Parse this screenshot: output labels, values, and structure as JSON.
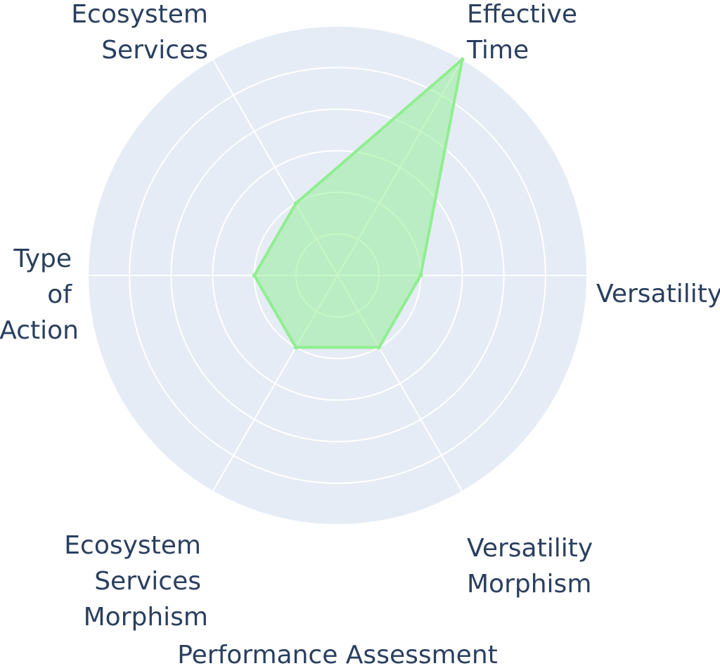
{
  "chart_data": {
    "type": "radar",
    "title": "Performance Assessment",
    "axes": [
      "Versatility",
      "Effective Time",
      "Ecosystem Services",
      "Type of Action",
      "Ecosystem Services Morphism",
      "Versatility Morphism"
    ],
    "axis_label_lines": [
      [
        "Versatility"
      ],
      [
        "Effective",
        "Time"
      ],
      [
        "Ecosystem",
        "Services"
      ],
      [
        "Type",
        "of",
        "Action"
      ],
      [
        "Ecosystem",
        "Services",
        "Morphism"
      ],
      [
        "Versatility",
        "Morphism"
      ]
    ],
    "series": [
      {
        "values": [
          2,
          6,
          2,
          2,
          2,
          2
        ]
      }
    ],
    "rlim": [
      0,
      6
    ],
    "ring_count": 6,
    "grid": true,
    "legend": "none",
    "colors": {
      "background": "#e5ecf6",
      "grid": "#ffffff",
      "series_line": "#90ee90",
      "series_fill": "rgba(144,238,144,0.5)",
      "text": "#2a3f5f"
    }
  }
}
